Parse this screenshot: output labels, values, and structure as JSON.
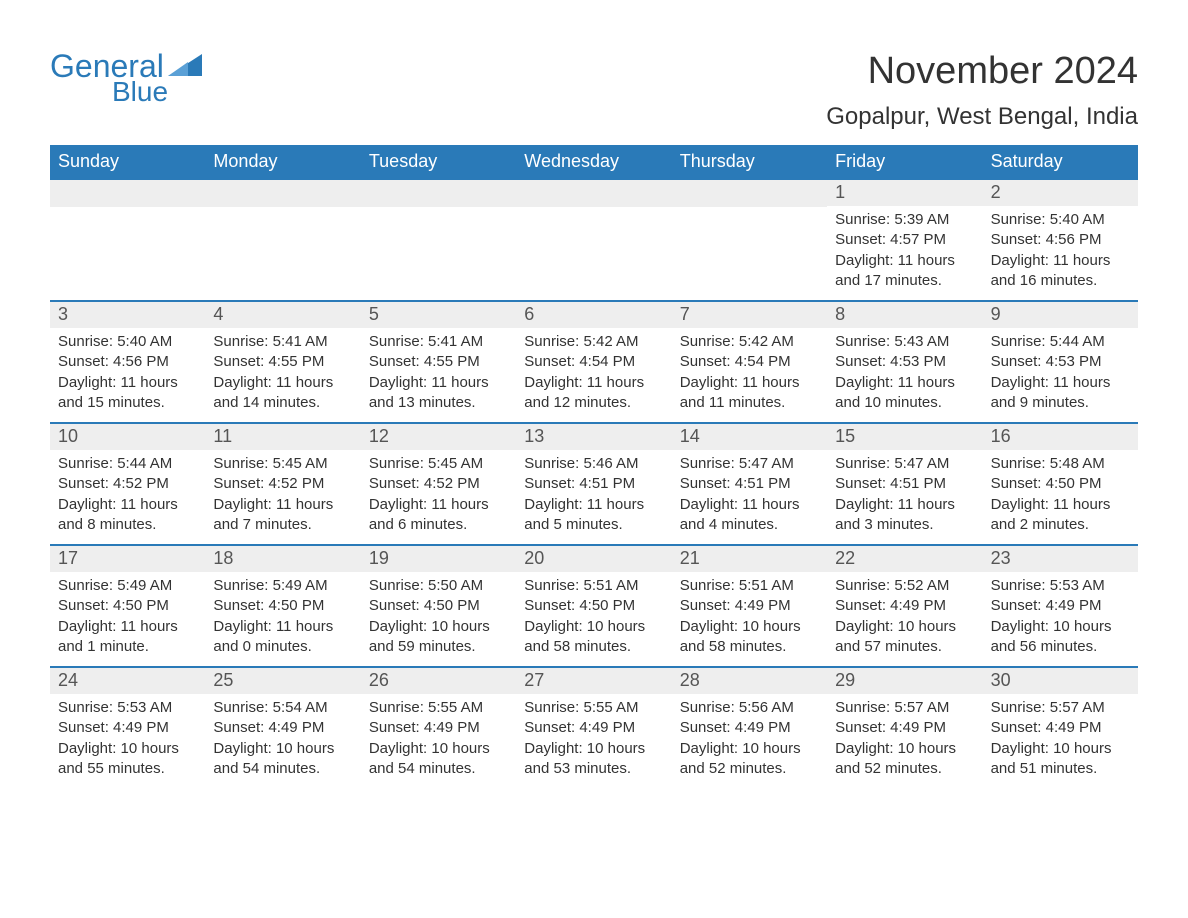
{
  "brand": {
    "word1": "General",
    "word2": "Blue",
    "tri_color": "#2a7ab8"
  },
  "title": {
    "month": "November 2024",
    "location": "Gopalpur, West Bengal, India"
  },
  "colors": {
    "header_bg": "#2a7ab8",
    "header_fg": "#ffffff",
    "daynum_bg": "#eeeeee",
    "daynum_fg": "#555555",
    "body_fg": "#333333",
    "rule": "#2a7ab8",
    "page_bg": "#ffffff"
  },
  "typography": {
    "title_fontsize": 38,
    "location_fontsize": 24,
    "dow_fontsize": 18,
    "daynum_fontsize": 18,
    "body_fontsize": 15,
    "font_family": "Arial"
  },
  "calendar": {
    "type": "month-grid",
    "columns": [
      "Sunday",
      "Monday",
      "Tuesday",
      "Wednesday",
      "Thursday",
      "Friday",
      "Saturday"
    ],
    "weeks": [
      [
        null,
        null,
        null,
        null,
        null,
        {
          "n": "1",
          "sunrise": "5:39 AM",
          "sunset": "4:57 PM",
          "daylight": "11 hours and 17 minutes."
        },
        {
          "n": "2",
          "sunrise": "5:40 AM",
          "sunset": "4:56 PM",
          "daylight": "11 hours and 16 minutes."
        }
      ],
      [
        {
          "n": "3",
          "sunrise": "5:40 AM",
          "sunset": "4:56 PM",
          "daylight": "11 hours and 15 minutes."
        },
        {
          "n": "4",
          "sunrise": "5:41 AM",
          "sunset": "4:55 PM",
          "daylight": "11 hours and 14 minutes."
        },
        {
          "n": "5",
          "sunrise": "5:41 AM",
          "sunset": "4:55 PM",
          "daylight": "11 hours and 13 minutes."
        },
        {
          "n": "6",
          "sunrise": "5:42 AM",
          "sunset": "4:54 PM",
          "daylight": "11 hours and 12 minutes."
        },
        {
          "n": "7",
          "sunrise": "5:42 AM",
          "sunset": "4:54 PM",
          "daylight": "11 hours and 11 minutes."
        },
        {
          "n": "8",
          "sunrise": "5:43 AM",
          "sunset": "4:53 PM",
          "daylight": "11 hours and 10 minutes."
        },
        {
          "n": "9",
          "sunrise": "5:44 AM",
          "sunset": "4:53 PM",
          "daylight": "11 hours and 9 minutes."
        }
      ],
      [
        {
          "n": "10",
          "sunrise": "5:44 AM",
          "sunset": "4:52 PM",
          "daylight": "11 hours and 8 minutes."
        },
        {
          "n": "11",
          "sunrise": "5:45 AM",
          "sunset": "4:52 PM",
          "daylight": "11 hours and 7 minutes."
        },
        {
          "n": "12",
          "sunrise": "5:45 AM",
          "sunset": "4:52 PM",
          "daylight": "11 hours and 6 minutes."
        },
        {
          "n": "13",
          "sunrise": "5:46 AM",
          "sunset": "4:51 PM",
          "daylight": "11 hours and 5 minutes."
        },
        {
          "n": "14",
          "sunrise": "5:47 AM",
          "sunset": "4:51 PM",
          "daylight": "11 hours and 4 minutes."
        },
        {
          "n": "15",
          "sunrise": "5:47 AM",
          "sunset": "4:51 PM",
          "daylight": "11 hours and 3 minutes."
        },
        {
          "n": "16",
          "sunrise": "5:48 AM",
          "sunset": "4:50 PM",
          "daylight": "11 hours and 2 minutes."
        }
      ],
      [
        {
          "n": "17",
          "sunrise": "5:49 AM",
          "sunset": "4:50 PM",
          "daylight": "11 hours and 1 minute."
        },
        {
          "n": "18",
          "sunrise": "5:49 AM",
          "sunset": "4:50 PM",
          "daylight": "11 hours and 0 minutes."
        },
        {
          "n": "19",
          "sunrise": "5:50 AM",
          "sunset": "4:50 PM",
          "daylight": "10 hours and 59 minutes."
        },
        {
          "n": "20",
          "sunrise": "5:51 AM",
          "sunset": "4:50 PM",
          "daylight": "10 hours and 58 minutes."
        },
        {
          "n": "21",
          "sunrise": "5:51 AM",
          "sunset": "4:49 PM",
          "daylight": "10 hours and 58 minutes."
        },
        {
          "n": "22",
          "sunrise": "5:52 AM",
          "sunset": "4:49 PM",
          "daylight": "10 hours and 57 minutes."
        },
        {
          "n": "23",
          "sunrise": "5:53 AM",
          "sunset": "4:49 PM",
          "daylight": "10 hours and 56 minutes."
        }
      ],
      [
        {
          "n": "24",
          "sunrise": "5:53 AM",
          "sunset": "4:49 PM",
          "daylight": "10 hours and 55 minutes."
        },
        {
          "n": "25",
          "sunrise": "5:54 AM",
          "sunset": "4:49 PM",
          "daylight": "10 hours and 54 minutes."
        },
        {
          "n": "26",
          "sunrise": "5:55 AM",
          "sunset": "4:49 PM",
          "daylight": "10 hours and 54 minutes."
        },
        {
          "n": "27",
          "sunrise": "5:55 AM",
          "sunset": "4:49 PM",
          "daylight": "10 hours and 53 minutes."
        },
        {
          "n": "28",
          "sunrise": "5:56 AM",
          "sunset": "4:49 PM",
          "daylight": "10 hours and 52 minutes."
        },
        {
          "n": "29",
          "sunrise": "5:57 AM",
          "sunset": "4:49 PM",
          "daylight": "10 hours and 52 minutes."
        },
        {
          "n": "30",
          "sunrise": "5:57 AM",
          "sunset": "4:49 PM",
          "daylight": "10 hours and 51 minutes."
        }
      ]
    ],
    "labels": {
      "sunrise": "Sunrise:",
      "sunset": "Sunset:",
      "daylight": "Daylight:"
    }
  }
}
